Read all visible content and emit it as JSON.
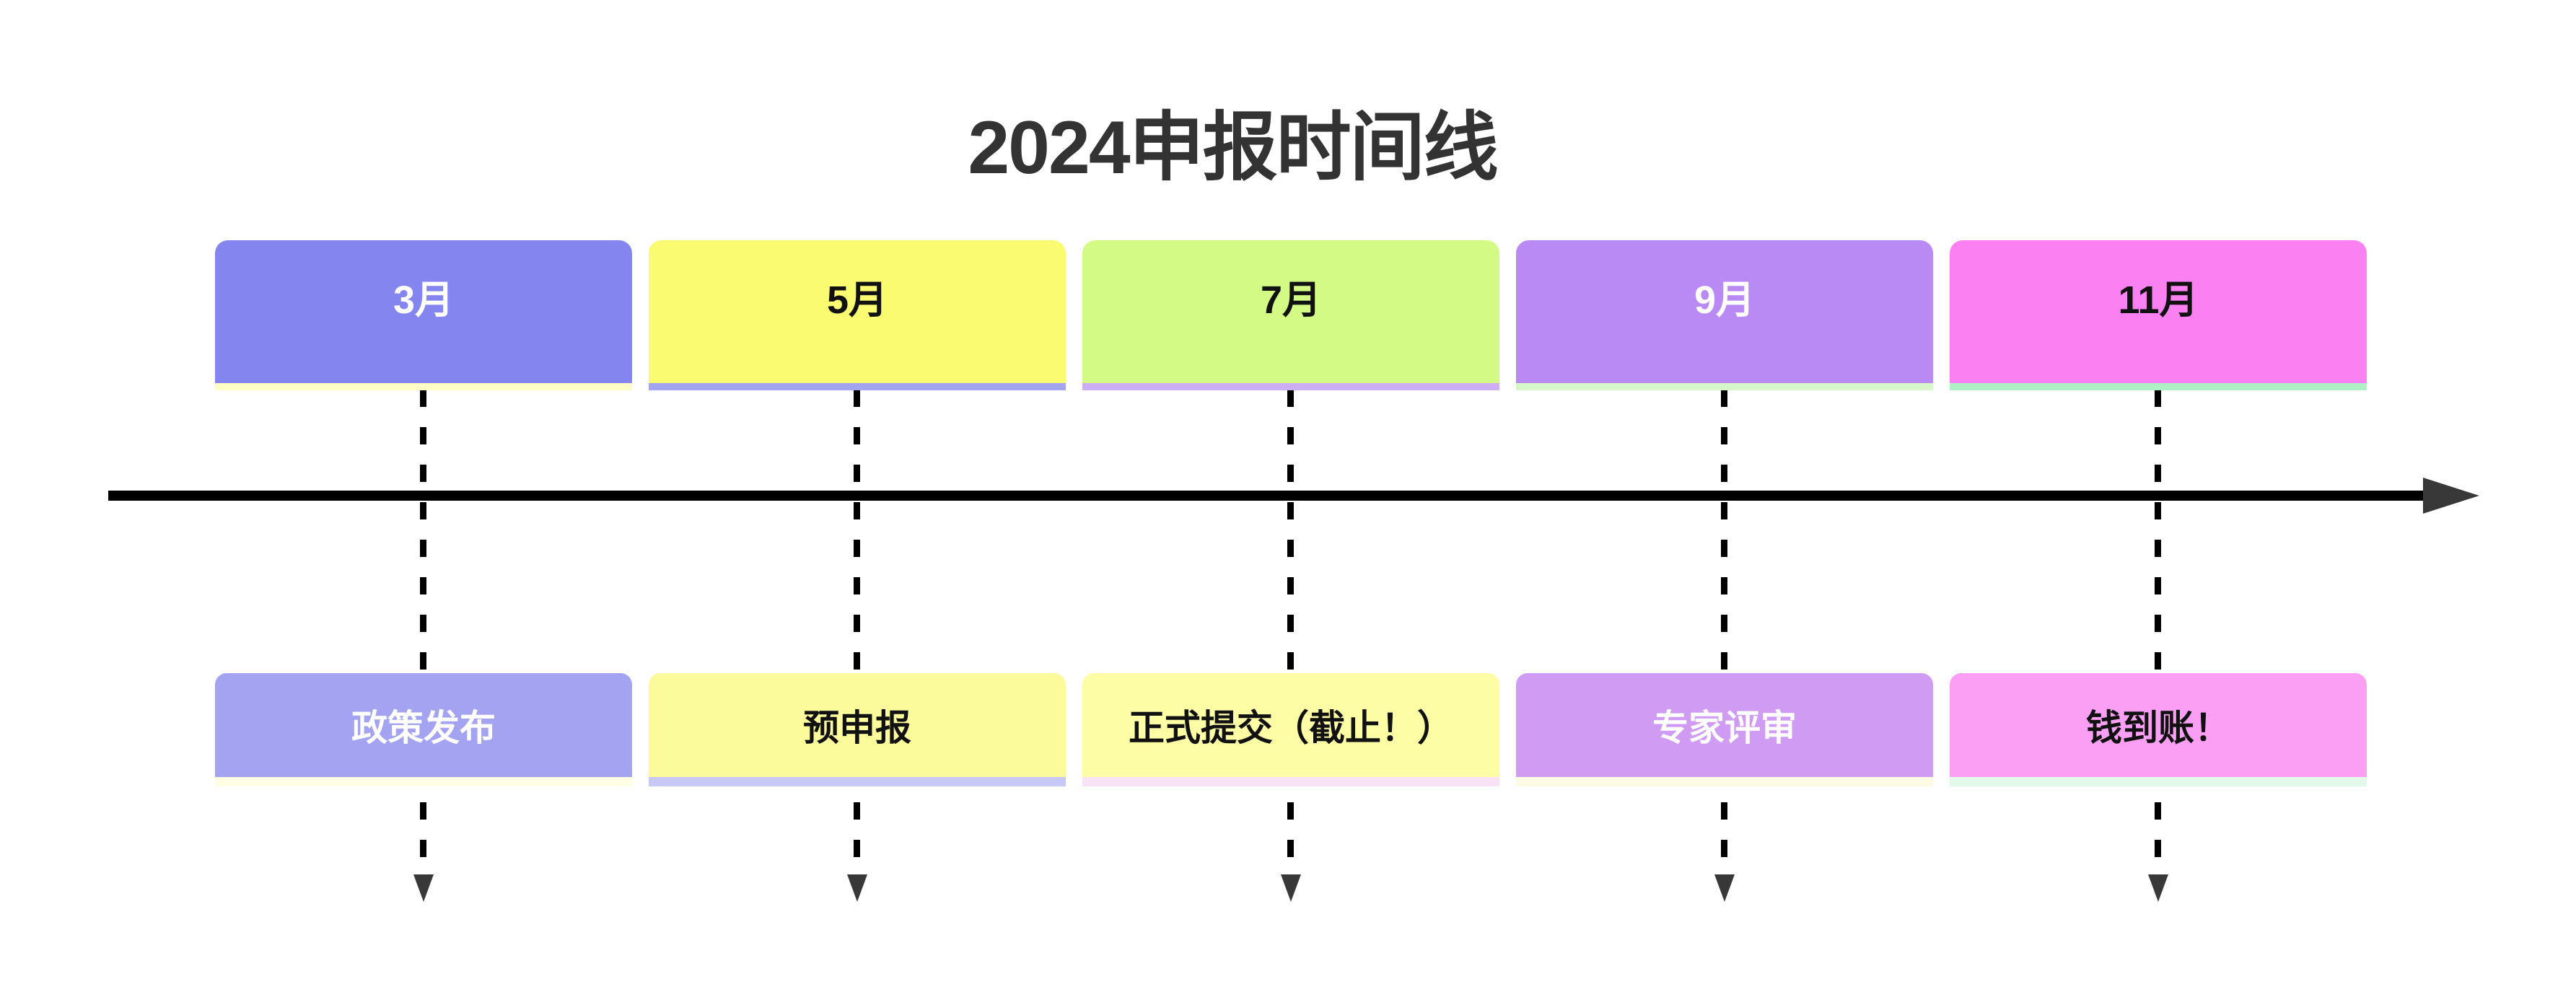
{
  "title": "2024申报时间线",
  "axis": {
    "line_color": "#000000",
    "arrowhead_color": "#383838",
    "connector_color": "#000000"
  },
  "timeline": {
    "columns": [
      {
        "month": "3月",
        "stage": "政策发布",
        "month_bg": "#8585F0",
        "month_text": "#FFFFFF",
        "month_shadow": "#FFFFC8",
        "stage_bg": "#A3A3F2",
        "stage_text": "#FFFFFF",
        "stage_shadow": "#FFFDE2"
      },
      {
        "month": "5月",
        "stage": "预申报",
        "month_bg": "#FBFB72",
        "month_text": "#111111",
        "month_shadow": "#A3A3F0",
        "stage_bg": "#FBFB9C",
        "stage_text": "#111111",
        "stage_shadow": "#C8C8F7"
      },
      {
        "month": "7月",
        "stage": "正式提交（截止！）",
        "month_bg": "#D3FA85",
        "month_text": "#111111",
        "month_shadow": "#CDAEF5",
        "stage_bg": "#FDFDA6",
        "stage_text": "#111111",
        "stage_shadow": "#F8E3F6"
      },
      {
        "month": "9月",
        "stage": "专家评审",
        "month_bg": "#B98AF3",
        "month_text": "#FFFFFF",
        "month_shadow": "#D8F7C9",
        "stage_bg": "#CF9BF3",
        "stage_text": "#FFFFFF",
        "stage_shadow": "#FDFBE3"
      },
      {
        "month": "11月",
        "stage": "钱到账！",
        "month_bg": "#FB81F3",
        "month_text": "#111111",
        "month_shadow": "#AEF1C5",
        "stage_bg": "#FB9FF5",
        "stage_text": "#111111",
        "stage_shadow": "#E2F8E8"
      }
    ]
  }
}
